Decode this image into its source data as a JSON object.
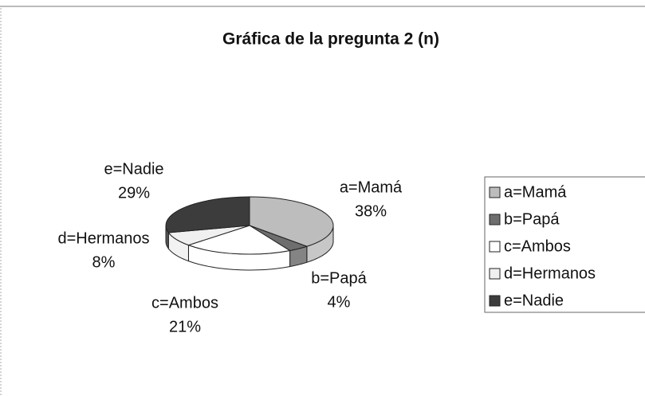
{
  "chart_data": {
    "type": "pie",
    "title": "Gráfica de la pregunta 2 (n)",
    "categories": [
      "a=Mamá",
      "b=Papá",
      "c=Ambos",
      "d=Hermanos",
      "e=Nadie"
    ],
    "values": [
      38,
      4,
      21,
      8,
      29
    ],
    "value_labels": [
      "38%",
      "4%",
      "21%",
      "8%",
      "29%"
    ],
    "colors": [
      "#bdbdbd",
      "#6e6e6e",
      "#ffffff",
      "#f0f0f0",
      "#3c3c3c"
    ],
    "legend": "right"
  }
}
